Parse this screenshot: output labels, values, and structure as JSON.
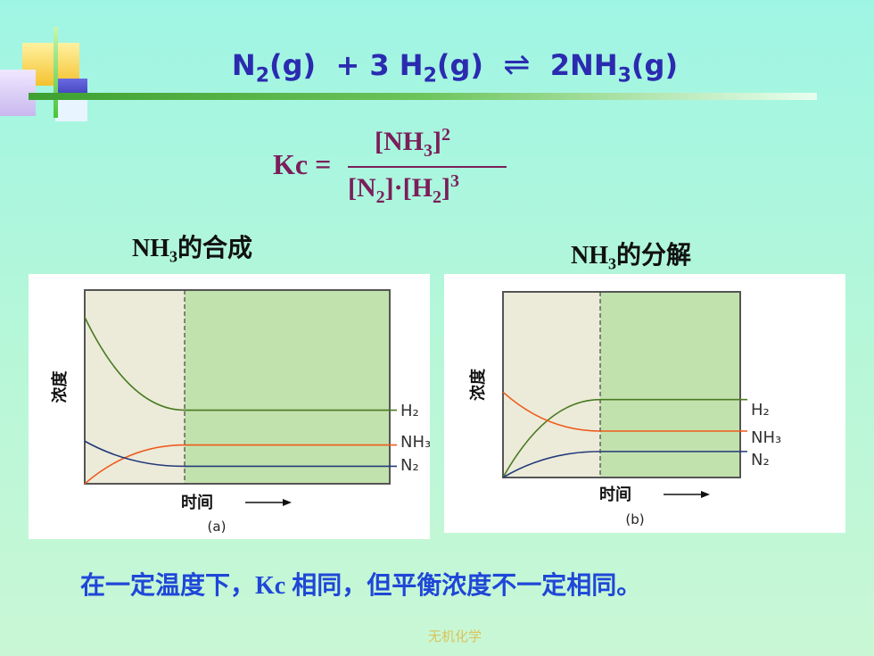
{
  "equation": {
    "left_n2": "N",
    "left_n2_sub": "2",
    "left_n2_state": "(g)",
    "plus": "+ 3 H",
    "h2_sub": "2",
    "h2_state": "(g)",
    "arrow": "⇌",
    "product": "2NH",
    "product_sub": "3",
    "product_state": "(g)"
  },
  "kc_expression": {
    "lhs": "Kc =",
    "numerator": "[NH",
    "numerator_sub": "3",
    "numerator_close": "]",
    "numerator_sup": "2",
    "denominator_a": "[N",
    "denominator_a_sub": "2",
    "denominator_mid": "]·[H",
    "denominator_b_sub": "2",
    "denominator_close": "]",
    "denominator_sup": "3"
  },
  "labels": {
    "synthesis_prefix": "NH",
    "synthesis_sub": "3",
    "synthesis_suffix": "的合成",
    "decomposition_prefix": "NH",
    "decomposition_sub": "3",
    "decomposition_suffix": "的分解"
  },
  "chart_data": [
    {
      "type": "line",
      "panel": "(a)",
      "xlabel": "时间",
      "ylabel": "浓度",
      "equilibrium_divider": "dashed vertical line",
      "series": [
        {
          "name": "H2",
          "display": "H₂",
          "color": "#4a7a22",
          "start": 0.86,
          "end": 0.38
        },
        {
          "name": "NH3",
          "display": "NH₃",
          "color": "#ee5a1c",
          "start": 0.0,
          "end": 0.2
        },
        {
          "name": "N2",
          "display": "N₂",
          "color": "#233a7a",
          "start": 0.22,
          "end": 0.09
        }
      ],
      "caption": "(a)"
    },
    {
      "type": "line",
      "panel": "(b)",
      "xlabel": "时间",
      "ylabel": "浓度",
      "equilibrium_divider": "dashed vertical line",
      "series": [
        {
          "name": "H2",
          "display": "H₂",
          "color": "#4a7a22",
          "start": 0.0,
          "end": 0.42
        },
        {
          "name": "NH3",
          "display": "NH₃",
          "color": "#ee5a1c",
          "start": 0.46,
          "end": 0.25
        },
        {
          "name": "N2",
          "display": "N₂",
          "color": "#233a7a",
          "start": 0.0,
          "end": 0.14
        }
      ],
      "caption": "(b)"
    }
  ],
  "bottom_note": "在一定温度下，Kc 相同，但平衡浓度不一定相同。",
  "footer": "无机化学",
  "colors": {
    "title": "#2b2bb0",
    "kc": "#7b1e5a",
    "note": "#1f47d8",
    "footer": "#d9c45a",
    "plot_left_bg": "#ecebd9",
    "plot_right_bg": "#c2e2ad"
  }
}
